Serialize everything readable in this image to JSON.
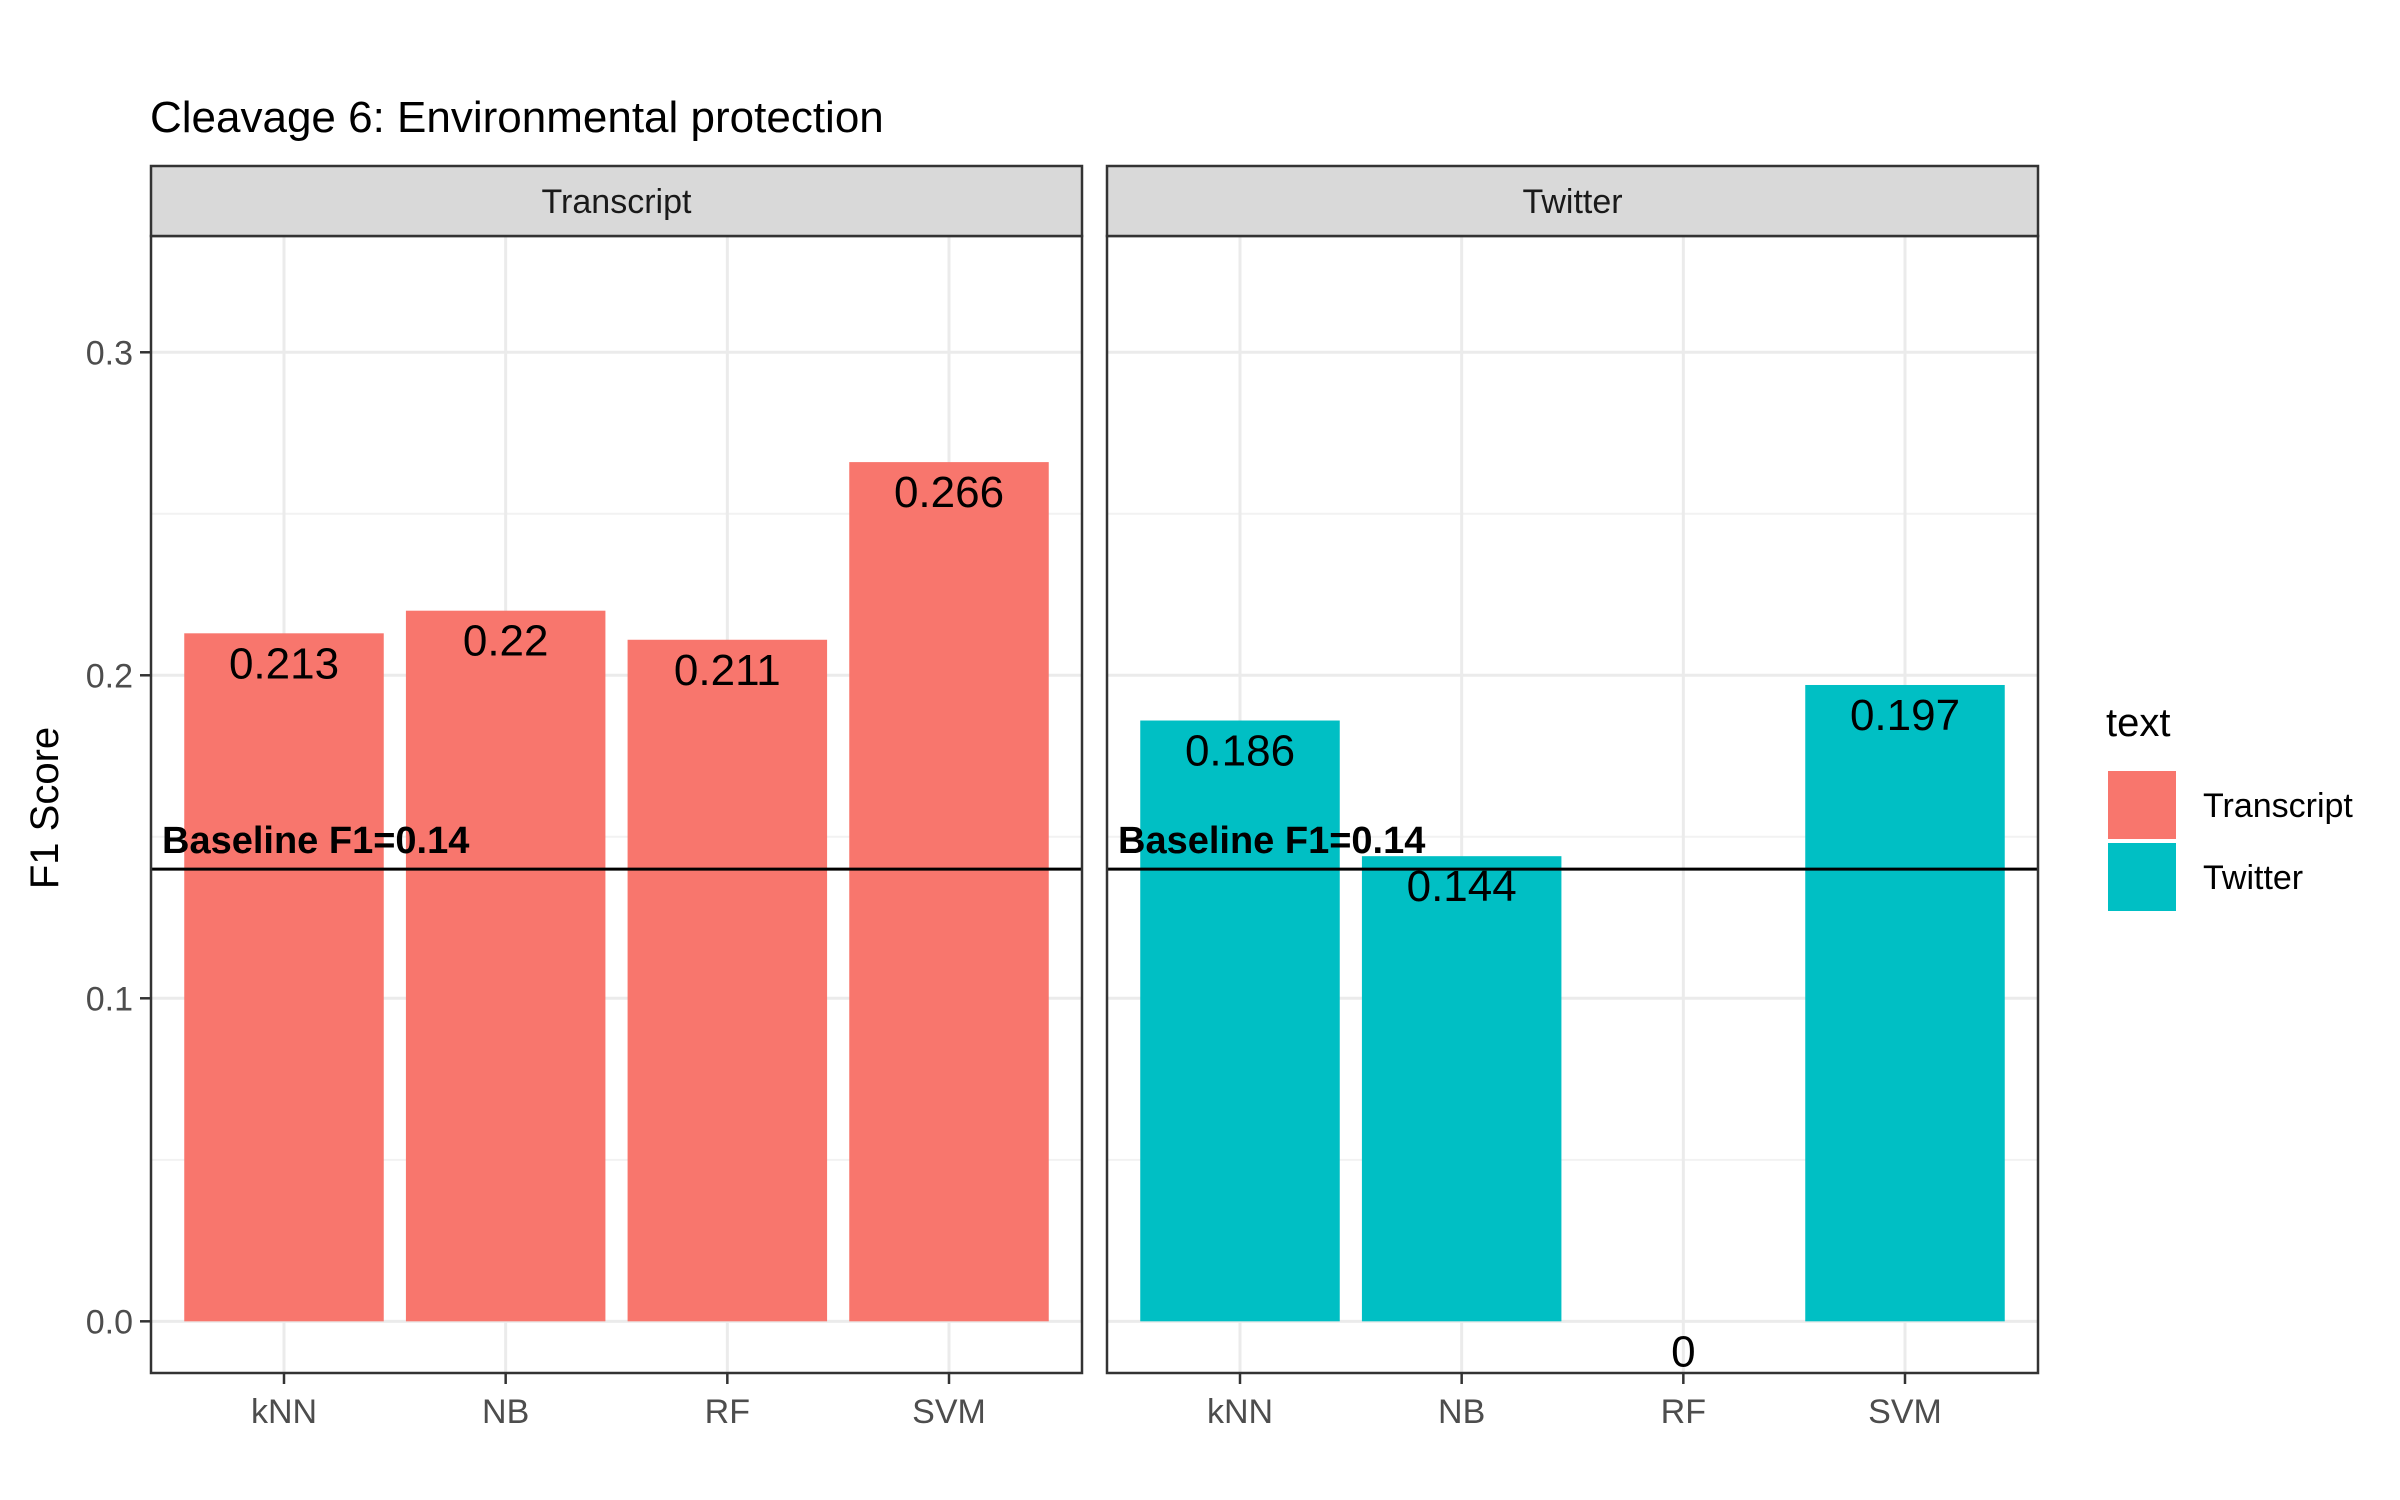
{
  "chart_data": {
    "type": "bar",
    "title": "Cleavage 6: Environmental protection",
    "ylabel": "F1 Score",
    "xlabel": "",
    "ylim": [
      -0.016,
      0.336
    ],
    "yticks": [
      0.0,
      0.1,
      0.2,
      0.3
    ],
    "ytick_labels": [
      "0.0",
      "0.1",
      "0.2",
      "0.3"
    ],
    "grid": true,
    "categories": [
      "kNN",
      "NB",
      "RF",
      "SVM"
    ],
    "baseline": {
      "value": 0.14,
      "label": "Baseline F1=0.14"
    },
    "legend": {
      "title": "text",
      "placement": "right",
      "entries": [
        {
          "name": "Transcript",
          "color": "#F8766D"
        },
        {
          "name": "Twitter",
          "color": "#00BFC4"
        }
      ]
    },
    "panels": [
      {
        "name": "Transcript",
        "color": "#F8766D",
        "values": [
          0.213,
          0.22,
          0.211,
          0.266
        ],
        "labels": [
          "0.213",
          "0.22",
          "0.211",
          "0.266"
        ]
      },
      {
        "name": "Twitter",
        "color": "#00BFC4",
        "values": [
          0.186,
          0.144,
          0,
          0.197
        ],
        "labels": [
          "0.186",
          "0.144",
          "0",
          "0.197"
        ]
      }
    ]
  }
}
